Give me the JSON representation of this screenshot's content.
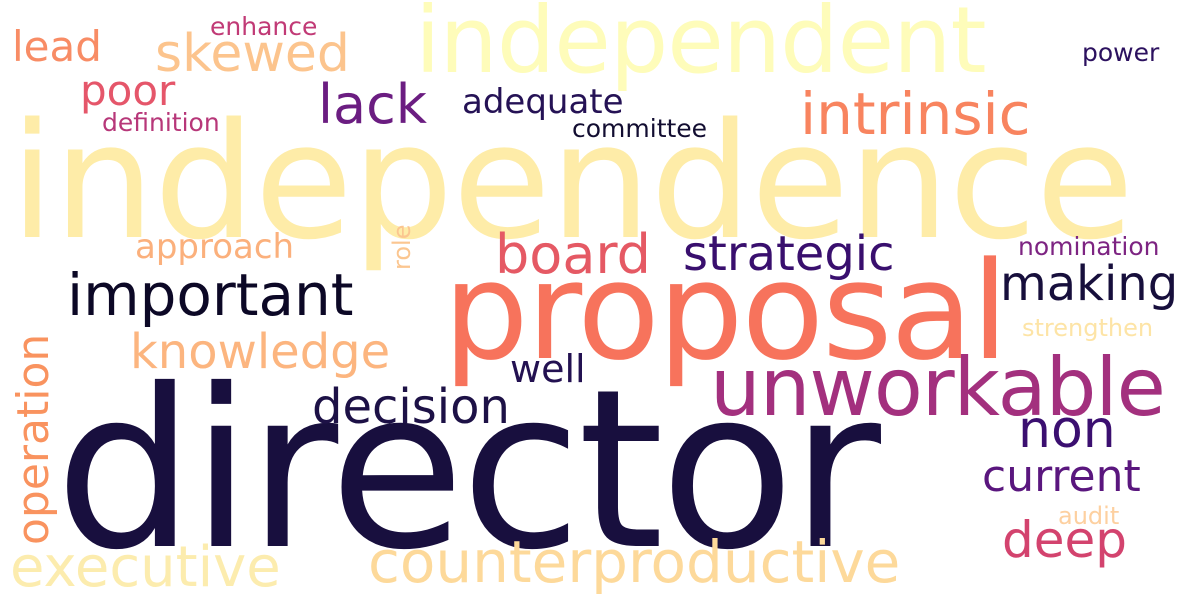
{
  "words": [
    {
      "text": "independence",
      "color": "#feeca8",
      "vertical": false
    },
    {
      "text": "director",
      "color": "#180f3e",
      "vertical": false
    },
    {
      "text": "proposal",
      "color": "#f7735c",
      "vertical": false
    },
    {
      "text": "independent",
      "color": "#fefcba",
      "vertical": false
    },
    {
      "text": "unworkable",
      "color": "#a3307e",
      "vertical": false
    },
    {
      "text": "counterproductive",
      "color": "#fdd99a",
      "vertical": false
    },
    {
      "text": "executive",
      "color": "#fcecae",
      "vertical": false
    },
    {
      "text": "important",
      "color": "#0c0826",
      "vertical": false
    },
    {
      "text": "intrinsic",
      "color": "#f8845f",
      "vertical": false
    },
    {
      "text": "board",
      "color": "#e55964",
      "vertical": false
    },
    {
      "text": "strategic",
      "color": "#390f6e",
      "vertical": false
    },
    {
      "text": "making",
      "color": "#170f3c",
      "vertical": false
    },
    {
      "text": "knowledge",
      "color": "#fcb57f",
      "vertical": false
    },
    {
      "text": "skewed",
      "color": "#fcc48d",
      "vertical": false
    },
    {
      "text": "decision",
      "color": "#1d1146",
      "vertical": false
    },
    {
      "text": "non",
      "color": "#3b0f70",
      "vertical": false
    },
    {
      "text": "deep",
      "color": "#d3436e",
      "vertical": false
    },
    {
      "text": "current",
      "color": "#5a167e",
      "vertical": false
    },
    {
      "text": "lack",
      "color": "#6b1d81",
      "vertical": false
    },
    {
      "text": "poor",
      "color": "#e5566a",
      "vertical": false
    },
    {
      "text": "lead",
      "color": "#f88c65",
      "vertical": false
    },
    {
      "text": "operation",
      "color": "#f9935f",
      "vertical": true
    },
    {
      "text": "adequate",
      "color": "#251255",
      "vertical": false
    },
    {
      "text": "approach",
      "color": "#fbb07c",
      "vertical": false
    },
    {
      "text": "well",
      "color": "#231151",
      "vertical": false
    },
    {
      "text": "committee",
      "color": "#120d31",
      "vertical": false
    },
    {
      "text": "nomination",
      "color": "#7d2482",
      "vertical": false
    },
    {
      "text": "definition",
      "color": "#b73779",
      "vertical": false
    },
    {
      "text": "enhance",
      "color": "#c13a76",
      "vertical": false
    },
    {
      "text": "power",
      "color": "#2c115f",
      "vertical": false
    },
    {
      "text": "strengthen",
      "color": "#fde4a6",
      "vertical": false
    },
    {
      "text": "audit",
      "color": "#fdd0a0",
      "vertical": false
    },
    {
      "text": "role",
      "color": "#fbc690",
      "vertical": true
    }
  ]
}
